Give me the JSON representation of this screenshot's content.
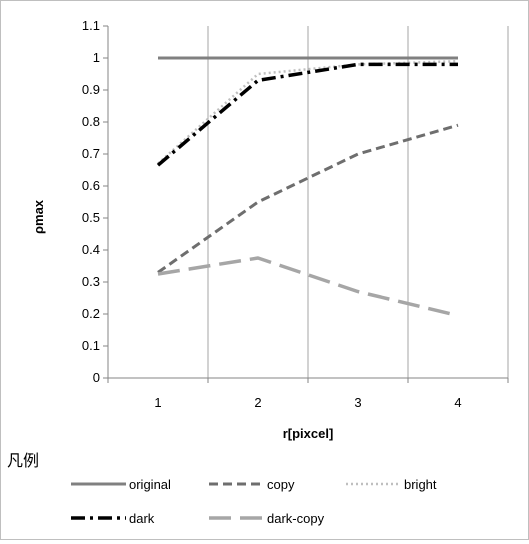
{
  "chart_data": {
    "type": "line",
    "title": "",
    "xlabel": "r[pixcel]",
    "ylabel": "ρmax",
    "categories": [
      "1",
      "2",
      "3",
      "4"
    ],
    "x": [
      1,
      2,
      3,
      4
    ],
    "xlim": [
      0.5,
      4.5
    ],
    "ylim": [
      0,
      1.1
    ],
    "y_ticks": [
      "0",
      "0.1",
      "0.2",
      "0.3",
      "0.4",
      "0.5",
      "0.6",
      "0.7",
      "0.8",
      "0.9",
      "1",
      "1.1"
    ],
    "grid": "vertical",
    "legend_title": "凡例",
    "legend_position": "bottom",
    "series": [
      {
        "name": "original",
        "values": [
          1.0,
          1.0,
          1.0,
          1.0
        ],
        "color": "#808080",
        "style": "solid"
      },
      {
        "name": "copy",
        "values": [
          0.33,
          0.55,
          0.7,
          0.79
        ],
        "color": "#6e6e6e",
        "style": "dashed"
      },
      {
        "name": "bright",
        "values": [
          0.67,
          0.95,
          0.98,
          0.99
        ],
        "color": "#bfbfbf",
        "style": "dotted"
      },
      {
        "name": "dark",
        "values": [
          0.665,
          0.93,
          0.98,
          0.98
        ],
        "color": "#000000",
        "style": "dash-dot"
      },
      {
        "name": "dark-copy",
        "values": [
          0.325,
          0.375,
          0.27,
          0.195
        ],
        "color": "#a6a6a6",
        "style": "long-dash"
      }
    ]
  }
}
